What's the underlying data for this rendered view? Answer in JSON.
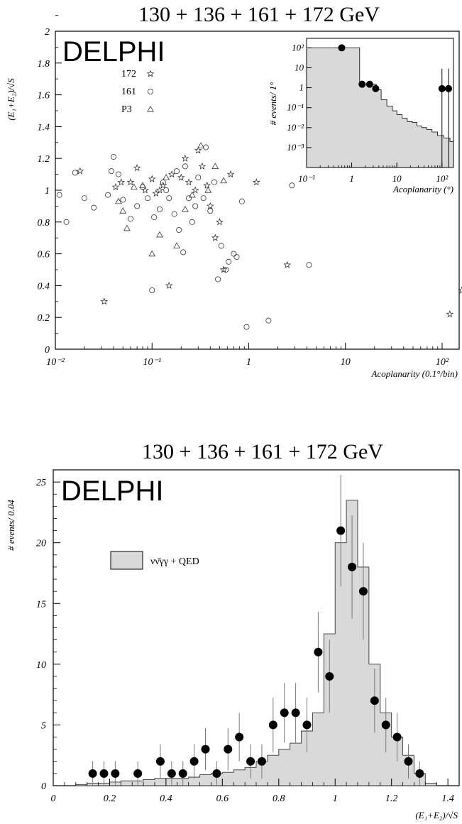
{
  "chart_data": [
    {
      "type": "scatter",
      "title": "130 + 136 + 161 + 172 GeV",
      "experiment": "DELPHI",
      "xlabel": "Acoplanarity (0.1°/bin)",
      "ylabel": "(E₁+E₂)/√S",
      "xscale": "log",
      "xlim": [
        0.01,
        150
      ],
      "ylim": [
        0,
        2
      ],
      "xticks": [
        "10⁻²",
        "10⁻¹",
        "1",
        "10",
        "10²"
      ],
      "yticks": [
        "0",
        "0.2",
        "0.4",
        "0.6",
        "0.8",
        "1",
        "1.2",
        "1.4",
        "1.6",
        "1.8",
        "2"
      ],
      "legend_position": "top-left",
      "series": [
        {
          "name": "172",
          "marker": "star",
          "points": [
            [
              0.018,
              1.12
            ],
            [
              0.032,
              0.3
            ],
            [
              0.042,
              1.02
            ],
            [
              0.048,
              1.05
            ],
            [
              0.06,
              1.05
            ],
            [
              0.07,
              1.14
            ],
            [
              0.085,
              1.0
            ],
            [
              0.1,
              1.07
            ],
            [
              0.11,
              0.98
            ],
            [
              0.12,
              1.0
            ],
            [
              0.13,
              1.03
            ],
            [
              0.15,
              0.4
            ],
            [
              0.16,
              1.1
            ],
            [
              0.2,
              1.08
            ],
            [
              0.22,
              1.2
            ],
            [
              0.24,
              1.05
            ],
            [
              0.28,
              1.0
            ],
            [
              0.3,
              1.25
            ],
            [
              0.33,
              1.15
            ],
            [
              0.37,
              1.03
            ],
            [
              0.4,
              0.9
            ],
            [
              0.45,
              0.7
            ],
            [
              0.5,
              0.8
            ],
            [
              0.55,
              0.5
            ],
            [
              0.65,
              1.1
            ],
            [
              1.2,
              1.05
            ],
            [
              2.5,
              0.53
            ],
            [
              120,
              0.22
            ],
            [
              160,
              0.37
            ]
          ]
        },
        {
          "name": "161",
          "marker": "circle",
          "points": [
            [
              0.011,
              0.97
            ],
            [
              0.013,
              0.8
            ],
            [
              0.016,
              1.11
            ],
            [
              0.02,
              0.95
            ],
            [
              0.025,
              0.89
            ],
            [
              0.035,
              0.97
            ],
            [
              0.038,
              1.12
            ],
            [
              0.04,
              1.21
            ],
            [
              0.045,
              1.1
            ],
            [
              0.05,
              0.94
            ],
            [
              0.06,
              0.82
            ],
            [
              0.07,
              0.9
            ],
            [
              0.08,
              1.02
            ],
            [
              0.09,
              0.95
            ],
            [
              0.1,
              0.37
            ],
            [
              0.105,
              0.83
            ],
            [
              0.12,
              0.88
            ],
            [
              0.13,
              1.05
            ],
            [
              0.14,
              1.0
            ],
            [
              0.15,
              0.95
            ],
            [
              0.17,
              0.85
            ],
            [
              0.18,
              1.12
            ],
            [
              0.19,
              0.75
            ],
            [
              0.21,
              0.61
            ],
            [
              0.22,
              1.15
            ],
            [
              0.24,
              0.95
            ],
            [
              0.26,
              0.8
            ],
            [
              0.28,
              0.9
            ],
            [
              0.3,
              1.08
            ],
            [
              0.34,
              0.95
            ],
            [
              0.36,
              1.27
            ],
            [
              0.4,
              0.87
            ],
            [
              0.44,
              1.05
            ],
            [
              0.48,
              0.44
            ],
            [
              0.52,
              0.65
            ],
            [
              0.58,
              0.5
            ],
            [
              0.62,
              0.55
            ],
            [
              0.7,
              0.6
            ],
            [
              0.75,
              0.58
            ],
            [
              0.85,
              0.93
            ],
            [
              0.95,
              0.14
            ],
            [
              1.6,
              0.18
            ],
            [
              2.8,
              1.03
            ],
            [
              4.2,
              0.53
            ]
          ]
        },
        {
          "name": "P3",
          "marker": "triangle",
          "points": [
            [
              0.045,
              0.93
            ],
            [
              0.05,
              0.87
            ],
            [
              0.055,
              0.76
            ],
            [
              0.065,
              1.02
            ],
            [
              0.08,
              1.03
            ],
            [
              0.1,
              0.6
            ],
            [
              0.12,
              0.72
            ],
            [
              0.14,
              1.08
            ],
            [
              0.18,
              0.65
            ],
            [
              0.22,
              0.88
            ],
            [
              0.26,
              0.97
            ],
            [
              0.32,
              1.28
            ],
            [
              0.38,
              1.0
            ],
            [
              0.45,
              1.15
            ],
            [
              0.55,
              1.06
            ]
          ]
        }
      ]
    },
    {
      "type": "histogram",
      "title": "",
      "xlabel": "Acoplanarity (°)",
      "ylabel": "# events/ 1°",
      "xscale": "log",
      "yscale": "log",
      "xlim": [
        0.1,
        180
      ],
      "ylim": [
        0.0001,
        300
      ],
      "xticks": [
        "10⁻¹",
        "1",
        "10",
        "10²"
      ],
      "yticks": [
        "10²",
        "10",
        "1",
        "10⁻¹",
        "10⁻²",
        "10⁻³"
      ],
      "simulation_steps": [
        [
          0.1,
          1.5,
          100
        ],
        [
          1.5,
          3.5,
          1.5
        ],
        [
          3.5,
          4.5,
          0.8
        ],
        [
          4.5,
          6,
          0.25
        ],
        [
          6,
          8,
          0.12
        ],
        [
          8,
          10,
          0.07
        ],
        [
          10,
          13,
          0.045
        ],
        [
          13,
          17,
          0.03
        ],
        [
          17,
          22,
          0.02
        ],
        [
          22,
          28,
          0.018
        ],
        [
          28,
          36,
          0.012
        ],
        [
          36,
          46,
          0.01
        ],
        [
          46,
          60,
          0.008
        ],
        [
          60,
          80,
          0.006
        ],
        [
          80,
          110,
          0.004
        ],
        [
          110,
          150,
          0.003
        ],
        [
          150,
          180,
          0.002
        ]
      ],
      "data_points": [
        [
          0.6,
          100
        ],
        [
          1.7,
          1.5
        ],
        [
          2.5,
          1.5
        ],
        [
          3.4,
          0.9
        ],
        [
          100,
          0.9
        ],
        [
          140,
          0.9
        ]
      ]
    },
    {
      "type": "histogram",
      "title": "130 + 136 + 161 + 172 GeV",
      "experiment": "DELPHI",
      "xlabel": "(E₁+E₂)/√S",
      "ylabel": "# events/ 0.04",
      "xlim": [
        0,
        1.44
      ],
      "ylim": [
        0,
        26
      ],
      "xticks": [
        "0",
        "0.2",
        "0.4",
        "0.6",
        "0.8",
        "1",
        "1.2",
        "1.4"
      ],
      "yticks": [
        "0",
        "5",
        "10",
        "15",
        "20",
        "25"
      ],
      "legend_position": "top-left",
      "simulation_name": "νν̄γγ + QED",
      "bin_edges": [
        0.08,
        0.12,
        0.16,
        0.2,
        0.24,
        0.28,
        0.32,
        0.36,
        0.4,
        0.44,
        0.48,
        0.52,
        0.56,
        0.6,
        0.64,
        0.68,
        0.72,
        0.76,
        0.8,
        0.84,
        0.88,
        0.92,
        0.96,
        1.0,
        1.04,
        1.08,
        1.12,
        1.16,
        1.2,
        1.24,
        1.28,
        1.32,
        1.36
      ],
      "simulation": [
        0.1,
        0.2,
        0.2,
        0.3,
        0.4,
        0.4,
        0.5,
        0.6,
        0.6,
        0.6,
        0.7,
        0.9,
        1.0,
        1.1,
        1.3,
        1.5,
        2.0,
        2.5,
        3.0,
        3.5,
        4.5,
        6.0,
        12.5,
        20.0,
        23.5,
        18.0,
        10.0,
        6.0,
        4.0,
        2.5,
        1.0,
        0.2
      ],
      "data_points": [
        [
          0.14,
          1
        ],
        [
          0.18,
          1
        ],
        [
          0.22,
          1
        ],
        [
          0.3,
          1
        ],
        [
          0.38,
          2
        ],
        [
          0.42,
          1
        ],
        [
          0.46,
          1
        ],
        [
          0.5,
          2
        ],
        [
          0.54,
          3
        ],
        [
          0.58,
          1
        ],
        [
          0.62,
          3
        ],
        [
          0.66,
          4
        ],
        [
          0.7,
          2
        ],
        [
          0.74,
          2
        ],
        [
          0.78,
          5
        ],
        [
          0.82,
          6
        ],
        [
          0.86,
          6
        ],
        [
          0.9,
          5
        ],
        [
          0.94,
          11
        ],
        [
          0.98,
          9
        ],
        [
          1.02,
          21
        ],
        [
          1.06,
          18
        ],
        [
          1.1,
          16
        ],
        [
          1.14,
          7
        ],
        [
          1.18,
          5
        ],
        [
          1.22,
          4
        ],
        [
          1.26,
          2
        ],
        [
          1.3,
          1
        ]
      ]
    }
  ]
}
